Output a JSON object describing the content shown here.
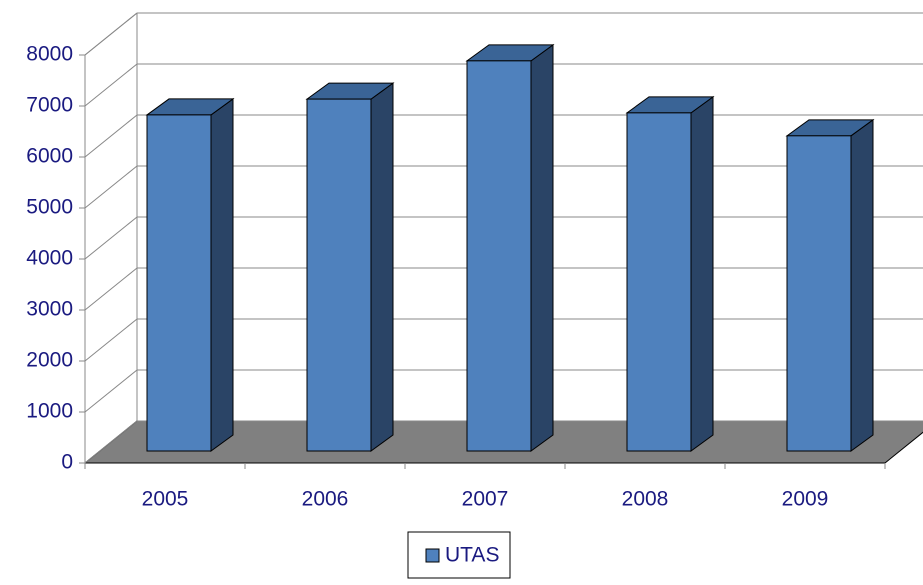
{
  "chart_data": {
    "type": "bar3d",
    "categories": [
      "2005",
      "2006",
      "2007",
      "2008",
      "2009"
    ],
    "series": [
      {
        "name": "UTAS",
        "color": "#4f81bd",
        "values": [
          6590,
          6900,
          7650,
          6630,
          6180
        ]
      }
    ],
    "ylim": [
      0,
      8000
    ],
    "yticks": [
      0,
      1000,
      2000,
      3000,
      4000,
      5000,
      6000,
      7000,
      8000
    ],
    "grid": true,
    "legend": "bottom"
  }
}
